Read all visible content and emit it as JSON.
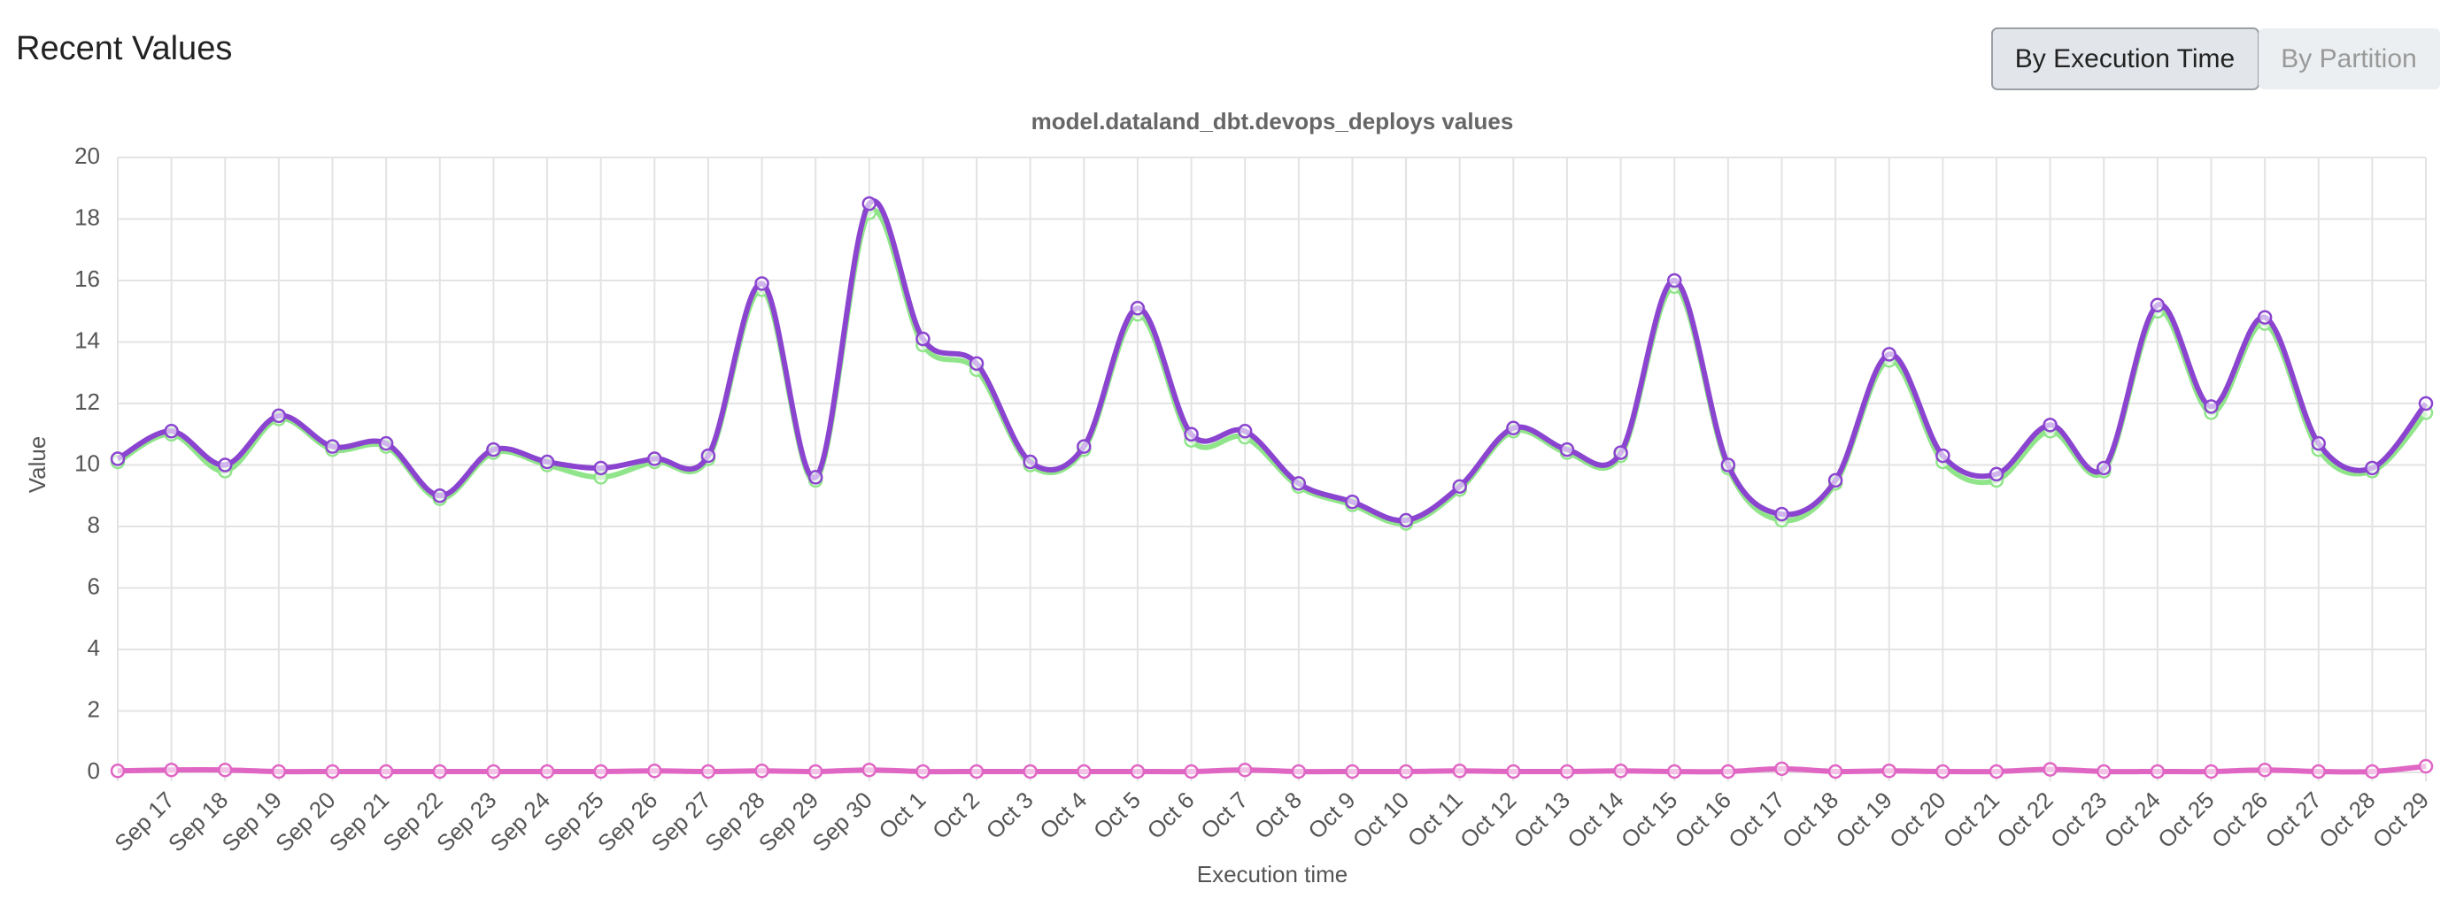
{
  "header": {
    "title": "Recent Values",
    "buttons": [
      "By Execution Time",
      "By Partition"
    ]
  },
  "chart_data": {
    "type": "line",
    "title": "model.dataland_dbt.devops_deploys values",
    "x_label": "Execution time",
    "y_label": "Value",
    "categories": [
      null,
      "Sep 17",
      "Sep 18",
      "Sep 19",
      "Sep 20",
      "Sep 21",
      "Sep 22",
      "Sep 23",
      "Sep 24",
      "Sep 25",
      "Sep 26",
      "Sep 27",
      "Sep 28",
      "Sep 29",
      "Sep 30",
      "Oct 1",
      "Oct 2",
      "Oct 3",
      "Oct 4",
      "Oct 5",
      "Oct 6",
      "Oct 7",
      "Oct 8",
      "Oct 9",
      "Oct 10",
      "Oct 11",
      "Oct 12",
      "Oct 13",
      "Oct 14",
      "Oct 15",
      "Oct 16",
      "Oct 17",
      "Oct 18",
      "Oct 19",
      "Oct 20",
      "Oct 21",
      "Oct 22",
      "Oct 23",
      "Oct 24",
      "Oct 25",
      "Oct 26",
      "Oct 27",
      "Oct 28",
      "Oct 29"
    ],
    "series": [
      {
        "color": "#90e58a",
        "values": [
          10.1,
          11.0,
          9.8,
          11.5,
          10.5,
          10.6,
          8.9,
          10.4,
          10.0,
          9.6,
          10.1,
          10.2,
          15.7,
          9.5,
          18.2,
          13.9,
          13.1,
          10.0,
          10.5,
          14.9,
          10.8,
          10.9,
          9.3,
          8.7,
          8.1,
          9.2,
          11.1,
          10.4,
          10.3,
          15.8,
          9.9,
          8.2,
          9.4,
          13.4,
          10.1,
          9.5,
          11.1,
          9.8,
          15.0,
          11.7,
          14.6,
          10.5,
          9.8,
          11.7
        ]
      },
      {
        "color": "#8b44cf",
        "values": [
          10.2,
          11.1,
          10.0,
          11.6,
          10.6,
          10.7,
          9.0,
          10.5,
          10.1,
          9.9,
          10.2,
          10.3,
          15.9,
          9.6,
          18.5,
          14.1,
          13.3,
          10.1,
          10.6,
          15.1,
          11.0,
          11.1,
          9.4,
          8.8,
          8.2,
          9.3,
          11.2,
          10.5,
          10.4,
          16.0,
          10.0,
          8.4,
          9.5,
          13.6,
          10.3,
          9.7,
          11.3,
          9.9,
          15.2,
          11.9,
          14.8,
          10.7,
          9.9,
          12.0
        ]
      },
      {
        "color": "#e066c4",
        "values": [
          0.05,
          0.08,
          0.08,
          0.03,
          0.03,
          0.03,
          0.03,
          0.03,
          0.03,
          0.03,
          0.05,
          0.03,
          0.05,
          0.03,
          0.08,
          0.03,
          0.03,
          0.03,
          0.03,
          0.03,
          0.03,
          0.08,
          0.03,
          0.03,
          0.03,
          0.05,
          0.03,
          0.03,
          0.05,
          0.03,
          0.03,
          0.12,
          0.03,
          0.05,
          0.03,
          0.03,
          0.1,
          0.03,
          0.03,
          0.03,
          0.08,
          0.03,
          0.03,
          0.2
        ]
      }
    ],
    "ylim": [
      0,
      20
    ],
    "yticks": [
      0,
      2,
      4,
      6,
      8,
      10,
      12,
      14,
      16,
      18,
      20
    ],
    "grid": true
  }
}
